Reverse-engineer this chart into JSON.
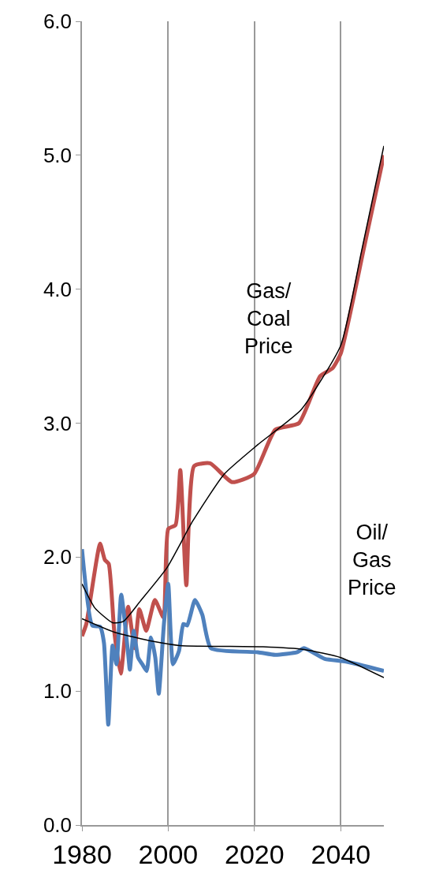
{
  "chart_data": {
    "type": "line",
    "xlim": [
      1980,
      2050
    ],
    "xticks": [
      1980,
      2000,
      2020,
      2040
    ],
    "ylim": [
      0,
      6
    ],
    "yticks": [
      {
        "value": 0,
        "label": "0.0"
      },
      {
        "value": 1,
        "label": "1.0"
      },
      {
        "value": 2,
        "label": "2.0"
      },
      {
        "value": 3,
        "label": "3.0"
      },
      {
        "value": 4,
        "label": "4.0"
      },
      {
        "value": 5,
        "label": "5.0"
      },
      {
        "value": 6,
        "label": "6.0"
      }
    ],
    "grid": "x",
    "legend": false,
    "marker": "none",
    "line_style": "solid",
    "series": [
      {
        "name": "Gas/ Coal Price",
        "color": "#c0504d",
        "x": [
          1980,
          1981,
          1984.2,
          1985.3,
          1986.2,
          1987.5,
          1989,
          1990.7,
          1992.2,
          1993.3,
          1994.9,
          1996.9,
          1998.9,
          2000,
          2001.7,
          2002.8,
          2004.2,
          2006,
          2009.7,
          2014.8,
          2019.9,
          2024.8,
          2030.3,
          2035.2,
          2038.1,
          2040,
          2045.4,
          2050
        ],
        "values": [
          1.41,
          1.5,
          2.1,
          1.98,
          1.95,
          1.44,
          1.13,
          1.63,
          1.32,
          1.61,
          1.45,
          1.68,
          1.55,
          2.21,
          2.24,
          2.65,
          1.79,
          2.68,
          2.7,
          2.56,
          2.62,
          2.95,
          3.0,
          3.35,
          3.41,
          3.52,
          4.31,
          5.0
        ]
      },
      {
        "name": "Oil/ Gas Price",
        "color": "#4f81bd",
        "x": [
          1980,
          1982.4,
          1984.2,
          1985.1,
          1986.1,
          1987.1,
          1988,
          1989.1,
          1990.7,
          1991.1,
          1992,
          1993,
          1994,
          1995,
          1996,
          1997,
          1997.8,
          1999,
          2000,
          2001.1,
          2002.5,
          2003.5,
          2004.4,
          2006.2,
          2007.9,
          2009.9,
          2020.8,
          2024.8,
          2029.9,
          2031.5,
          2036.3,
          2041.2,
          2050
        ],
        "values": [
          2.06,
          1.49,
          1.48,
          1.36,
          0.75,
          1.34,
          1.2,
          1.72,
          1.28,
          1.16,
          1.45,
          1.25,
          1.2,
          1.15,
          1.4,
          1.25,
          0.98,
          1.5,
          1.8,
          1.2,
          1.3,
          1.5,
          1.49,
          1.68,
          1.57,
          1.32,
          1.29,
          1.27,
          1.29,
          1.32,
          1.24,
          1.22,
          1.15
        ]
      },
      {
        "color": "#000000",
        "x": [
          1980,
          1983,
          1987.1,
          1989.6,
          1993.5,
          1999.7,
          2005.7,
          2013,
          2020.8,
          2030.8,
          2040,
          2044.8,
          2050
        ],
        "values": [
          1.8,
          1.62,
          1.51,
          1.52,
          1.67,
          1.92,
          2.27,
          2.62,
          2.84,
          3.1,
          3.58,
          4.28,
          5.07
        ]
      },
      {
        "color": "#000000",
        "x": [
          1980,
          1987.5,
          1996.6,
          2002.6,
          2022,
          2031.5,
          2040,
          2050
        ],
        "values": [
          1.54,
          1.44,
          1.37,
          1.34,
          1.33,
          1.31,
          1.25,
          1.1
        ]
      }
    ]
  }
}
